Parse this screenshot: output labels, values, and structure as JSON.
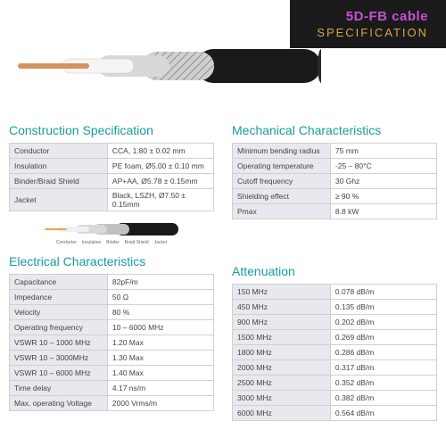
{
  "header": {
    "title": "5D-FB cable",
    "subtitle": "SPECIFICATION",
    "title_color": "#c94fd6",
    "subtitle_color": "#d4a947",
    "banner_bg": "#1a1a1a"
  },
  "section_title_color": "#1a9b9b",
  "table_header_bg": "#e8e8ee",
  "border_color": "#d0d0d0",
  "sections": {
    "construction": {
      "title": "Construction Specification",
      "rows": [
        {
          "k": "Conductor",
          "v": "CCA, 1.80 ± 0.02 mm"
        },
        {
          "k": "Insulation",
          "v": "PE foam, Ø5.00 ± 0.10 mm"
        },
        {
          "k": "Binder/Braid Shield",
          "v": "AP+AA, Ø5.78 ± 0.15mm"
        },
        {
          "k": "Jacket",
          "v": "Black, LSZH, Ø7.50 ± 0.15mm"
        }
      ],
      "layers": [
        "Conductor",
        "Insulation",
        "Binder",
        "Braid Shield",
        "Jacket"
      ]
    },
    "mechanical": {
      "title": "Mechanical Characteristics",
      "rows": [
        {
          "k": "Minimum bending radius",
          "v": "75 mm"
        },
        {
          "k": "Operating temperature",
          "v": "-25 – 80°C"
        },
        {
          "k": "Cutoff frequency",
          "v": "30 Ghz"
        },
        {
          "k": "Shielding effect",
          "v": "≥ 90 %"
        },
        {
          "k": "Pmax",
          "v": "8.8 kW"
        }
      ]
    },
    "electrical": {
      "title": "Electrical Characteristics",
      "rows": [
        {
          "k": "Capacitance",
          "v": "82pF/m"
        },
        {
          "k": "Impedance",
          "v": "50 Ω"
        },
        {
          "k": "Velocity",
          "v": "80 %"
        },
        {
          "k": "Operating frequency",
          "v": "10 – 6000 MHz"
        },
        {
          "k": "VSWR 10 – 1000 MHz",
          "v": "1.20 Max"
        },
        {
          "k": "VSWR 10 – 3000MHz",
          "v": "1.30 Max"
        },
        {
          "k": "VSWR 10 – 6000 MHz",
          "v": "1.40 Max"
        },
        {
          "k": "Time delay",
          "v": "4.17 ns/m"
        },
        {
          "k": "Max. operating Voltage",
          "v": "2000 Vrms/m"
        }
      ]
    },
    "attenuation": {
      "title": "Attenuation",
      "rows": [
        {
          "k": "150 MHz",
          "v": "0.078 dB/m"
        },
        {
          "k": "450 MHz",
          "v": "0.135 dB/m"
        },
        {
          "k": "900 MHz",
          "v": "0.202 dB/m"
        },
        {
          "k": "1500 MHz",
          "v": "0.269 dB/m"
        },
        {
          "k": "1800 MHz",
          "v": "0.286 dB/m"
        },
        {
          "k": "2000 MHz",
          "v": "0.317 dB/m"
        },
        {
          "k": "2500 MHz",
          "v": "0.352 dB/m"
        },
        {
          "k": "3000 MHz",
          "v": "0.382 dB/m"
        },
        {
          "k": "6000 MHz",
          "v": "0.564 dB/m"
        }
      ]
    }
  },
  "cable_colors": {
    "conductor": "#d4935a",
    "insulation": "#e8e8e8",
    "shield": "#c0c0c0",
    "jacket": "#1a1a1a"
  }
}
